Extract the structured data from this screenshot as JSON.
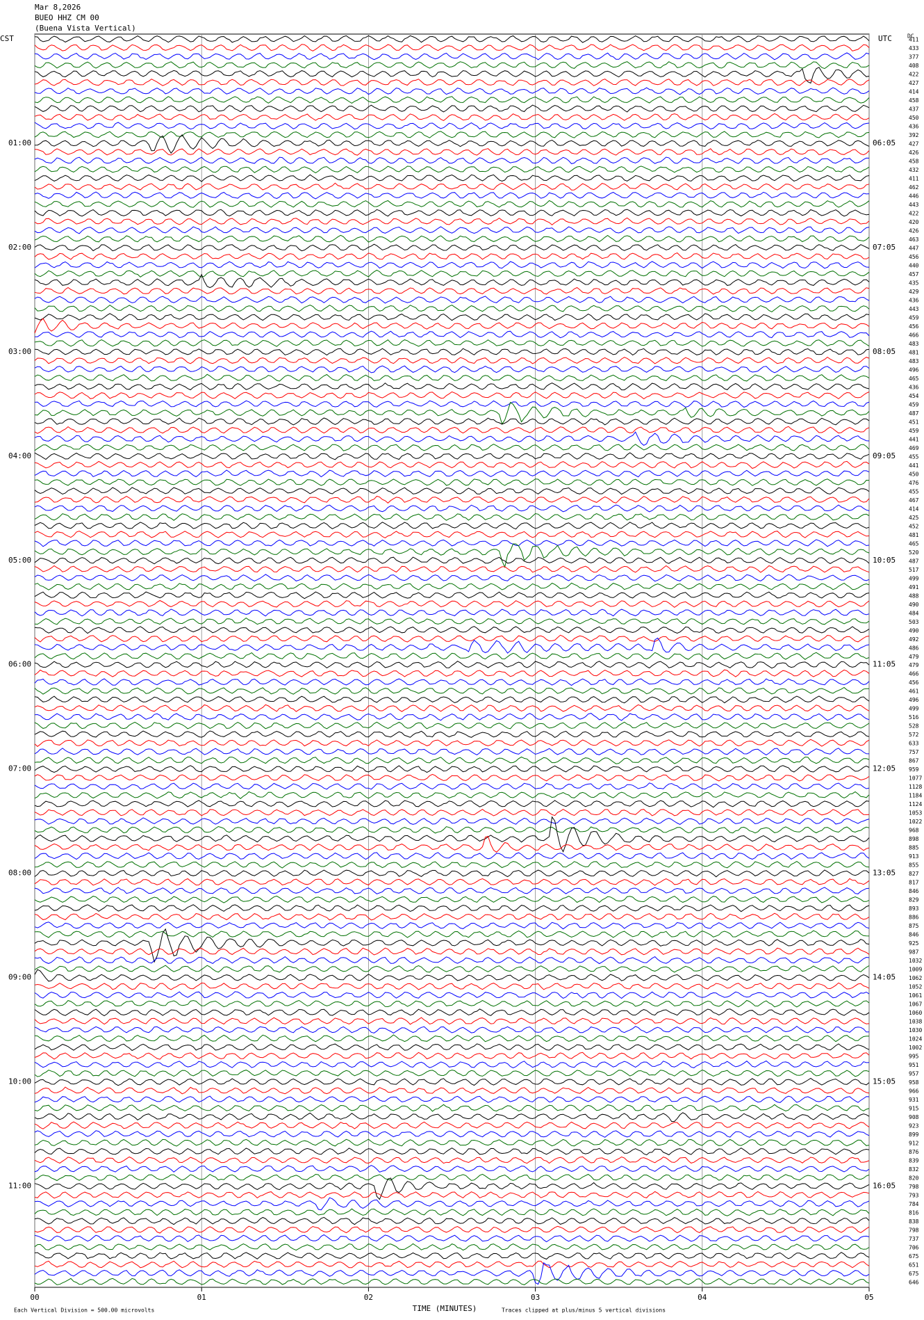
{
  "chart_data": {
    "type": "helicorder",
    "title_lines": [
      "Mar 8,2026",
      "BUEO HHZ CM 00",
      "(Buena Vista Vertical)"
    ],
    "left_time_zone": "CST",
    "right_time_zone": "UTC",
    "left_hour_labels": [
      "01:00",
      "02:00",
      "03:00",
      "04:00",
      "05:00",
      "06:00",
      "07:00",
      "08:00",
      "09:00",
      "10:00",
      "11:00"
    ],
    "right_hour_labels": [
      "06:05",
      "07:05",
      "08:05",
      "09:05",
      "10:05",
      "11:05",
      "12:05",
      "13:05",
      "14:05",
      "15:05",
      "16:05"
    ],
    "right_column_header": "DC",
    "line_values": [
      411,
      433,
      377,
      408,
      422,
      427,
      414,
      458,
      437,
      450,
      436,
      392,
      427,
      426,
      458,
      432,
      411,
      462,
      446,
      443,
      422,
      420,
      426,
      463,
      447,
      456,
      440,
      457,
      435,
      429,
      436,
      443,
      459,
      456,
      466,
      483,
      481,
      483,
      496,
      465,
      436,
      454,
      459,
      487,
      451,
      459,
      441,
      469,
      455,
      441,
      450,
      476,
      455,
      467,
      414,
      425,
      452,
      481,
      465,
      520,
      487,
      517,
      499,
      491,
      488,
      490,
      484,
      503,
      490,
      492,
      486,
      479,
      479,
      466,
      456,
      461,
      496,
      499,
      516,
      528,
      572,
      633,
      757,
      867,
      959,
      1077,
      1128,
      1184,
      1124,
      1053,
      1022,
      968,
      898,
      885,
      913,
      855,
      827,
      817,
      846,
      829,
      893,
      886,
      875,
      846,
      925,
      987,
      1032,
      1009,
      1062,
      1052,
      1061,
      1067,
      1060,
      1038,
      1030,
      1024,
      1002,
      995,
      951,
      957,
      958,
      966,
      931,
      915,
      908,
      923,
      899,
      912,
      876,
      839,
      832,
      820,
      798,
      793,
      784,
      816,
      838,
      798,
      737,
      706,
      675,
      651,
      675,
      646
    ],
    "colors": [
      "#000000",
      "#ff0000",
      "#0000ff",
      "#007000"
    ],
    "xlim": [
      0,
      5
    ],
    "xticks": [
      {
        "value": 0,
        "label": "00"
      },
      {
        "value": 1,
        "label": "01"
      },
      {
        "value": 2,
        "label": "02"
      },
      {
        "value": 3,
        "label": "03"
      },
      {
        "value": 4,
        "label": "04"
      },
      {
        "value": 5,
        "label": "05"
      }
    ],
    "x_label": "TIME (MINUTES)",
    "scale_note": "Each Vertical Division =  500.00 microvolts",
    "clip_note": "Traces clipped at plus/minus 5 vertical divisions"
  }
}
